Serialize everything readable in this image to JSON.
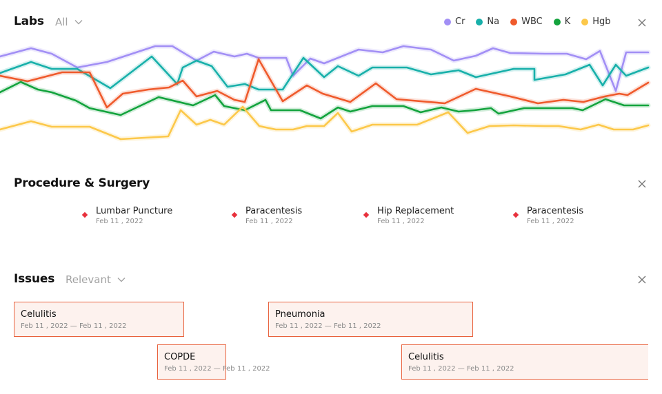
{
  "labs": {
    "title": "Labs",
    "filter": "All",
    "legend": [
      {
        "name": "Cr",
        "color": "#a28ff5"
      },
      {
        "name": "Na",
        "color": "#18b0aa"
      },
      {
        "name": "WBC",
        "color": "#ef5a2c"
      },
      {
        "name": "K",
        "color": "#13a33d"
      },
      {
        "name": "Hgb",
        "color": "#fcc84a"
      }
    ]
  },
  "chart_data": {
    "type": "line",
    "series": [
      {
        "name": "Cr",
        "color": "#a28ff5",
        "values": [
          [
            0,
            82
          ],
          [
            45,
            70
          ],
          [
            75,
            78
          ],
          [
            112,
            98
          ],
          [
            155,
            90
          ],
          [
            225,
            67
          ],
          [
            250,
            67
          ],
          [
            285,
            88
          ],
          [
            310,
            75
          ],
          [
            340,
            82
          ],
          [
            358,
            78
          ],
          [
            375,
            84
          ],
          [
            415,
            84
          ],
          [
            425,
            110
          ],
          [
            450,
            85
          ],
          [
            470,
            92
          ],
          [
            520,
            72
          ],
          [
            555,
            76
          ],
          [
            585,
            67
          ],
          [
            625,
            72
          ],
          [
            658,
            88
          ],
          [
            690,
            81
          ],
          [
            715,
            70
          ],
          [
            740,
            77
          ],
          [
            790,
            78
          ],
          [
            822,
            78
          ],
          [
            850,
            86
          ],
          [
            870,
            74
          ],
          [
            893,
            132
          ],
          [
            908,
            76
          ],
          [
            940,
            76
          ]
        ]
      },
      {
        "name": "Na",
        "color": "#18b0aa",
        "values": [
          [
            0,
            106
          ],
          [
            45,
            90
          ],
          [
            75,
            100
          ],
          [
            112,
            100
          ],
          [
            160,
            128
          ],
          [
            220,
            82
          ],
          [
            257,
            122
          ],
          [
            265,
            98
          ],
          [
            285,
            88
          ],
          [
            307,
            96
          ],
          [
            330,
            126
          ],
          [
            355,
            122
          ],
          [
            375,
            130
          ],
          [
            410,
            130
          ],
          [
            440,
            84
          ],
          [
            470,
            112
          ],
          [
            490,
            96
          ],
          [
            520,
            110
          ],
          [
            540,
            98
          ],
          [
            590,
            98
          ],
          [
            625,
            108
          ],
          [
            665,
            102
          ],
          [
            690,
            112
          ],
          [
            745,
            100
          ],
          [
            775,
            100
          ],
          [
            775,
            116
          ],
          [
            820,
            108
          ],
          [
            855,
            94
          ],
          [
            874,
            124
          ],
          [
            893,
            94
          ],
          [
            908,
            110
          ],
          [
            940,
            98
          ]
        ]
      },
      {
        "name": "WBC",
        "color": "#ef5a2c",
        "values": [
          [
            0,
            110
          ],
          [
            40,
            118
          ],
          [
            90,
            105
          ],
          [
            130,
            105
          ],
          [
            155,
            156
          ],
          [
            178,
            136
          ],
          [
            215,
            130
          ],
          [
            245,
            127
          ],
          [
            265,
            117
          ],
          [
            285,
            140
          ],
          [
            315,
            132
          ],
          [
            340,
            145
          ],
          [
            355,
            148
          ],
          [
            375,
            86
          ],
          [
            410,
            147
          ],
          [
            445,
            124
          ],
          [
            468,
            136
          ],
          [
            508,
            148
          ],
          [
            545,
            121
          ],
          [
            575,
            144
          ],
          [
            645,
            150
          ],
          [
            690,
            129
          ],
          [
            740,
            140
          ],
          [
            780,
            150
          ],
          [
            817,
            145
          ],
          [
            846,
            148
          ],
          [
            877,
            140
          ],
          [
            898,
            136
          ],
          [
            910,
            138
          ],
          [
            940,
            120
          ]
        ]
      },
      {
        "name": "K",
        "color": "#13a33d",
        "values": [
          [
            0,
            134
          ],
          [
            30,
            119
          ],
          [
            55,
            130
          ],
          [
            75,
            134
          ],
          [
            110,
            146
          ],
          [
            130,
            157
          ],
          [
            175,
            167
          ],
          [
            230,
            141
          ],
          [
            280,
            153
          ],
          [
            312,
            138
          ],
          [
            325,
            154
          ],
          [
            355,
            160
          ],
          [
            385,
            145
          ],
          [
            393,
            160
          ],
          [
            435,
            160
          ],
          [
            465,
            172
          ],
          [
            490,
            156
          ],
          [
            508,
            162
          ],
          [
            540,
            154
          ],
          [
            585,
            154
          ],
          [
            610,
            163
          ],
          [
            640,
            156
          ],
          [
            665,
            162
          ],
          [
            688,
            160
          ],
          [
            712,
            157
          ],
          [
            723,
            165
          ],
          [
            760,
            157
          ],
          [
            830,
            157
          ],
          [
            845,
            160
          ],
          [
            878,
            144
          ],
          [
            905,
            153
          ],
          [
            940,
            153
          ]
        ]
      },
      {
        "name": "Hgb",
        "color": "#fcc84a",
        "values": [
          [
            0,
            188
          ],
          [
            45,
            176
          ],
          [
            75,
            184
          ],
          [
            130,
            184
          ],
          [
            175,
            202
          ],
          [
            244,
            198
          ],
          [
            262,
            160
          ],
          [
            285,
            181
          ],
          [
            305,
            174
          ],
          [
            325,
            181
          ],
          [
            352,
            155
          ],
          [
            376,
            183
          ],
          [
            400,
            188
          ],
          [
            425,
            188
          ],
          [
            445,
            183
          ],
          [
            470,
            183
          ],
          [
            490,
            164
          ],
          [
            510,
            191
          ],
          [
            540,
            181
          ],
          [
            570,
            181
          ],
          [
            605,
            181
          ],
          [
            650,
            163
          ],
          [
            678,
            193
          ],
          [
            710,
            183
          ],
          [
            745,
            182
          ],
          [
            790,
            183
          ],
          [
            810,
            183
          ],
          [
            842,
            188
          ],
          [
            868,
            181
          ],
          [
            890,
            188
          ],
          [
            918,
            188
          ],
          [
            940,
            182
          ]
        ]
      }
    ]
  },
  "procedures": {
    "title": "Procedure & Surgery",
    "items": [
      {
        "name": "Lumbar Puncture",
        "date": "Feb 11 , 2022"
      },
      {
        "name": "Paracentesis",
        "date": "Feb 11 , 2022"
      },
      {
        "name": "Hip Replacement",
        "date": "Feb 11 , 2022"
      },
      {
        "name": "Paracentesis",
        "date": "Feb 11 , 2022"
      }
    ],
    "marker_color": "#e8313c"
  },
  "issues": {
    "title": "Issues",
    "filter": "Relevant",
    "items": [
      {
        "name": "Celulitis",
        "range": "Feb 11 , 2022 — Feb 11 , 2022"
      },
      {
        "name": "Pneumonia",
        "range": "Feb 11 , 2022 — Feb 11 , 2022"
      },
      {
        "name": "COPDE",
        "range": "Feb 11 , 2022 — Feb 11 , 2022"
      },
      {
        "name": "Celulitis",
        "range": "Feb 11 , 2022 — Feb 11 , 2022"
      }
    ]
  }
}
